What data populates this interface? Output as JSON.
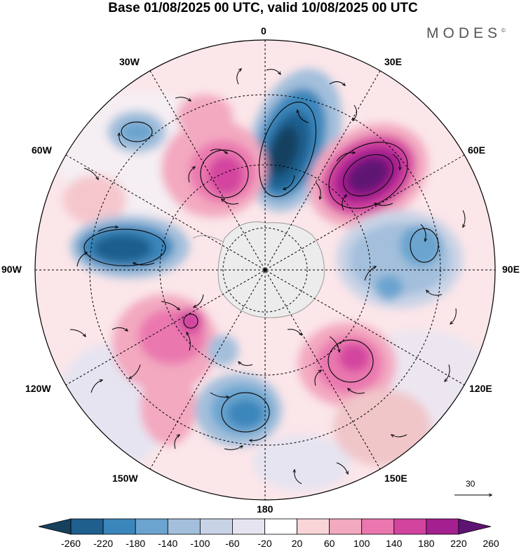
{
  "title": "Base 01/08/2025 00 UTC, valid 10/08/2025 00 UTC",
  "brand": "MODES",
  "brand_mark": "©",
  "longitude_labels": {
    "lon_0": "0",
    "lon_30e": "30E",
    "lon_60e": "60E",
    "lon_90e": "90E",
    "lon_120e": "120E",
    "lon_150e": "150E",
    "lon_180": "180",
    "lon_150w": "150W",
    "lon_120w": "120W",
    "lon_90w": "90W",
    "lon_60w": "60W",
    "lon_30w": "30W"
  },
  "reference_vector": {
    "label": "30"
  },
  "colorbar": {
    "ticks": [
      "-260",
      "-220",
      "-180",
      "-140",
      "-100",
      "-60",
      "-20",
      "20",
      "60",
      "100",
      "140",
      "180",
      "220",
      "260"
    ],
    "colors": [
      "#16405e",
      "#1f5f8e",
      "#3a86bb",
      "#6aa4cf",
      "#a3bfdc",
      "#c9d3e6",
      "#e6e4f1",
      "#ffffff",
      "#f9d5d8",
      "#f3a9c0",
      "#ea78af",
      "#d3449f",
      "#a41f8f",
      "#5e1473"
    ]
  }
}
